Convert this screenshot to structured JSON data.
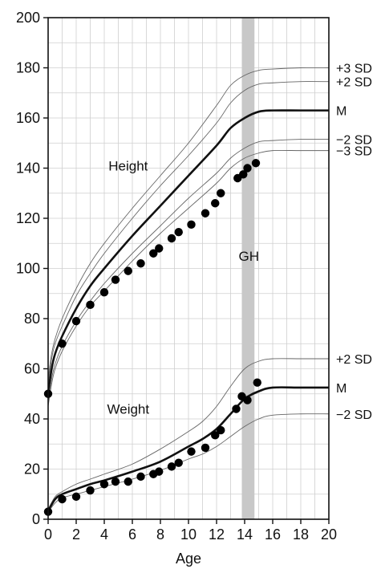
{
  "chart_data": {
    "type": "line",
    "title": "",
    "xlabel": "Age",
    "ylabel": "",
    "xlim": [
      0,
      20
    ],
    "ylim": [
      0,
      200
    ],
    "x_ticks": [
      0,
      2,
      4,
      6,
      8,
      10,
      12,
      14,
      16,
      18,
      20
    ],
    "y_ticks": [
      0,
      20,
      40,
      60,
      80,
      100,
      120,
      140,
      160,
      180,
      200
    ],
    "grid": true,
    "annotations": {
      "height": "Height",
      "weight": "Weight",
      "gh": "GH"
    },
    "gh_band": {
      "x_start": 13.8,
      "x_end": 14.7,
      "color": "#c8c8c8"
    },
    "height_curves": [
      {
        "name": "+3 SD",
        "label": "+3 SD",
        "weight": "thin",
        "x": [
          0,
          0.25,
          0.5,
          1,
          2,
          3,
          4,
          6,
          8,
          10,
          12,
          13,
          14,
          15,
          16,
          18,
          20
        ],
        "y": [
          56,
          66,
          72,
          80,
          92,
          102,
          110,
          124,
          137,
          150,
          165,
          173,
          177,
          179,
          179.5,
          180,
          180
        ]
      },
      {
        "name": "+2 SD",
        "label": "+2 SD",
        "weight": "thin",
        "x": [
          0,
          0.25,
          0.5,
          1,
          2,
          3,
          4,
          6,
          8,
          10,
          12,
          13,
          14,
          15,
          16,
          18,
          20
        ],
        "y": [
          54,
          64,
          70,
          77,
          89,
          98,
          106,
          120,
          133,
          145,
          158,
          166,
          171,
          173.5,
          174,
          174.5,
          174.5
        ]
      },
      {
        "name": "M",
        "label": "M",
        "weight": "bold",
        "x": [
          0,
          0.25,
          0.5,
          1,
          2,
          3,
          4,
          6,
          8,
          10,
          12,
          13,
          14,
          15,
          16,
          18,
          20
        ],
        "y": [
          50,
          60,
          66,
          73,
          84,
          93,
          100,
          113,
          125,
          137,
          149,
          156,
          160,
          162.5,
          163,
          163,
          163
        ]
      },
      {
        "name": "-2 SD",
        "label": "−2 SD",
        "weight": "thin",
        "x": [
          0,
          0.25,
          0.5,
          1,
          2,
          3,
          4,
          6,
          8,
          10,
          12,
          13,
          14,
          15,
          16,
          18,
          20
        ],
        "y": [
          47,
          56,
          62,
          69,
          79,
          87,
          94,
          106,
          117,
          128,
          138,
          144,
          148,
          150.5,
          151,
          151.5,
          151.5
        ]
      },
      {
        "name": "-3 SD",
        "label": "−3 SD",
        "weight": "thin",
        "x": [
          0,
          0.25,
          0.5,
          1,
          2,
          3,
          4,
          6,
          8,
          10,
          12,
          13,
          14,
          15,
          16,
          18,
          20
        ],
        "y": [
          45,
          54,
          60,
          67,
          77,
          85,
          91,
          103,
          114,
          124,
          134,
          140,
          144,
          146,
          147,
          147,
          147
        ]
      }
    ],
    "weight_curves": [
      {
        "name": "+2 SD",
        "label": "+2 SD",
        "weight": "thin",
        "x": [
          0,
          0.5,
          1,
          2,
          3,
          4,
          6,
          8,
          10,
          11,
          12,
          13,
          14,
          15,
          16,
          18,
          20
        ],
        "y": [
          4,
          9,
          11,
          14,
          16,
          18,
          22,
          28,
          35,
          39,
          45,
          53,
          60,
          63,
          64,
          64,
          64
        ]
      },
      {
        "name": "M",
        "label": "M",
        "weight": "bold",
        "x": [
          0,
          0.5,
          1,
          2,
          3,
          4,
          6,
          8,
          10,
          11,
          12,
          13,
          14,
          15,
          16,
          18,
          20
        ],
        "y": [
          3.3,
          8,
          10,
          12,
          14,
          15.5,
          19,
          23,
          29,
          32,
          36,
          42,
          48,
          51,
          52.5,
          52.5,
          52.5
        ]
      },
      {
        "name": "-2 SD",
        "label": "−2 SD",
        "weight": "thin",
        "x": [
          0,
          0.5,
          1,
          2,
          3,
          4,
          6,
          8,
          10,
          11,
          12,
          13,
          14,
          15,
          16,
          18,
          20
        ],
        "y": [
          2.8,
          6.5,
          8.5,
          10,
          11.5,
          13,
          16,
          19.5,
          24,
          26,
          29,
          33,
          37,
          40,
          41.5,
          42,
          42
        ]
      }
    ],
    "height_points": {
      "x": [
        0,
        1,
        2,
        3,
        4,
        4.8,
        5.7,
        6.6,
        7.5,
        7.9,
        8.8,
        9.3,
        10.2,
        11.2,
        11.9,
        12.3,
        13.5,
        13.9,
        14.2,
        14.8
      ],
      "y": [
        50,
        70,
        79,
        85.5,
        90.5,
        95.5,
        99,
        102,
        106,
        108,
        112,
        114.5,
        117.5,
        122,
        126,
        130,
        136,
        137.5,
        140,
        142
      ]
    },
    "weight_points": {
      "x": [
        0,
        1,
        2,
        3,
        4,
        4.8,
        5.7,
        6.6,
        7.5,
        7.9,
        8.8,
        9.3,
        10.2,
        11.2,
        11.9,
        12.3,
        13.4,
        13.8,
        14.2,
        14.9
      ],
      "y": [
        3,
        8,
        9,
        11.5,
        14,
        15,
        15,
        17,
        18,
        19,
        21,
        22.5,
        27,
        28.5,
        33.5,
        35.5,
        44,
        49,
        47.5,
        54.5
      ]
    }
  }
}
